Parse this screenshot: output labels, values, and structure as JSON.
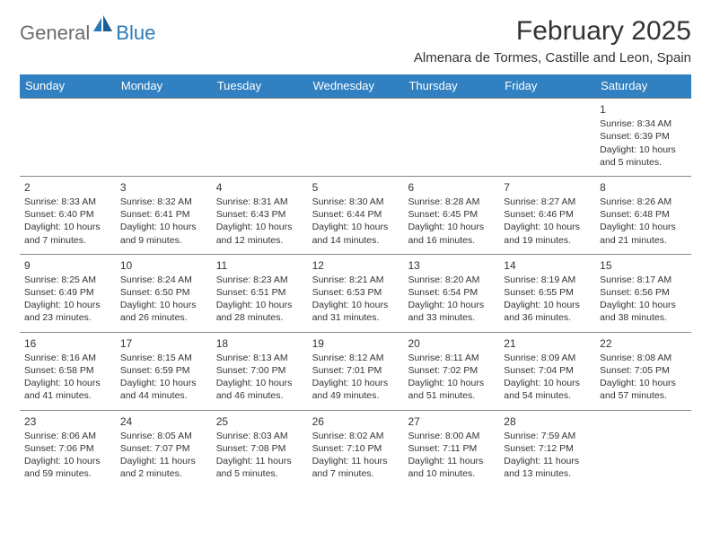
{
  "brand": {
    "text1": "General",
    "text2": "Blue"
  },
  "title": "February 2025",
  "location": "Almenara de Tormes, Castille and Leon, Spain",
  "colors": {
    "header_bg": "#3080c2",
    "header_text": "#ffffff",
    "text": "#333333",
    "border": "#888888",
    "logo_gray": "#6b6b6b",
    "logo_blue": "#2a7ab9",
    "background": "#ffffff"
  },
  "day_names": [
    "Sunday",
    "Monday",
    "Tuesday",
    "Wednesday",
    "Thursday",
    "Friday",
    "Saturday"
  ],
  "weeks": [
    [
      null,
      null,
      null,
      null,
      null,
      null,
      {
        "n": "1",
        "sunrise": "Sunrise: 8:34 AM",
        "sunset": "Sunset: 6:39 PM",
        "day1": "Daylight: 10 hours",
        "day2": "and 5 minutes."
      }
    ],
    [
      {
        "n": "2",
        "sunrise": "Sunrise: 8:33 AM",
        "sunset": "Sunset: 6:40 PM",
        "day1": "Daylight: 10 hours",
        "day2": "and 7 minutes."
      },
      {
        "n": "3",
        "sunrise": "Sunrise: 8:32 AM",
        "sunset": "Sunset: 6:41 PM",
        "day1": "Daylight: 10 hours",
        "day2": "and 9 minutes."
      },
      {
        "n": "4",
        "sunrise": "Sunrise: 8:31 AM",
        "sunset": "Sunset: 6:43 PM",
        "day1": "Daylight: 10 hours",
        "day2": "and 12 minutes."
      },
      {
        "n": "5",
        "sunrise": "Sunrise: 8:30 AM",
        "sunset": "Sunset: 6:44 PM",
        "day1": "Daylight: 10 hours",
        "day2": "and 14 minutes."
      },
      {
        "n": "6",
        "sunrise": "Sunrise: 8:28 AM",
        "sunset": "Sunset: 6:45 PM",
        "day1": "Daylight: 10 hours",
        "day2": "and 16 minutes."
      },
      {
        "n": "7",
        "sunrise": "Sunrise: 8:27 AM",
        "sunset": "Sunset: 6:46 PM",
        "day1": "Daylight: 10 hours",
        "day2": "and 19 minutes."
      },
      {
        "n": "8",
        "sunrise": "Sunrise: 8:26 AM",
        "sunset": "Sunset: 6:48 PM",
        "day1": "Daylight: 10 hours",
        "day2": "and 21 minutes."
      }
    ],
    [
      {
        "n": "9",
        "sunrise": "Sunrise: 8:25 AM",
        "sunset": "Sunset: 6:49 PM",
        "day1": "Daylight: 10 hours",
        "day2": "and 23 minutes."
      },
      {
        "n": "10",
        "sunrise": "Sunrise: 8:24 AM",
        "sunset": "Sunset: 6:50 PM",
        "day1": "Daylight: 10 hours",
        "day2": "and 26 minutes."
      },
      {
        "n": "11",
        "sunrise": "Sunrise: 8:23 AM",
        "sunset": "Sunset: 6:51 PM",
        "day1": "Daylight: 10 hours",
        "day2": "and 28 minutes."
      },
      {
        "n": "12",
        "sunrise": "Sunrise: 8:21 AM",
        "sunset": "Sunset: 6:53 PM",
        "day1": "Daylight: 10 hours",
        "day2": "and 31 minutes."
      },
      {
        "n": "13",
        "sunrise": "Sunrise: 8:20 AM",
        "sunset": "Sunset: 6:54 PM",
        "day1": "Daylight: 10 hours",
        "day2": "and 33 minutes."
      },
      {
        "n": "14",
        "sunrise": "Sunrise: 8:19 AM",
        "sunset": "Sunset: 6:55 PM",
        "day1": "Daylight: 10 hours",
        "day2": "and 36 minutes."
      },
      {
        "n": "15",
        "sunrise": "Sunrise: 8:17 AM",
        "sunset": "Sunset: 6:56 PM",
        "day1": "Daylight: 10 hours",
        "day2": "and 38 minutes."
      }
    ],
    [
      {
        "n": "16",
        "sunrise": "Sunrise: 8:16 AM",
        "sunset": "Sunset: 6:58 PM",
        "day1": "Daylight: 10 hours",
        "day2": "and 41 minutes."
      },
      {
        "n": "17",
        "sunrise": "Sunrise: 8:15 AM",
        "sunset": "Sunset: 6:59 PM",
        "day1": "Daylight: 10 hours",
        "day2": "and 44 minutes."
      },
      {
        "n": "18",
        "sunrise": "Sunrise: 8:13 AM",
        "sunset": "Sunset: 7:00 PM",
        "day1": "Daylight: 10 hours",
        "day2": "and 46 minutes."
      },
      {
        "n": "19",
        "sunrise": "Sunrise: 8:12 AM",
        "sunset": "Sunset: 7:01 PM",
        "day1": "Daylight: 10 hours",
        "day2": "and 49 minutes."
      },
      {
        "n": "20",
        "sunrise": "Sunrise: 8:11 AM",
        "sunset": "Sunset: 7:02 PM",
        "day1": "Daylight: 10 hours",
        "day2": "and 51 minutes."
      },
      {
        "n": "21",
        "sunrise": "Sunrise: 8:09 AM",
        "sunset": "Sunset: 7:04 PM",
        "day1": "Daylight: 10 hours",
        "day2": "and 54 minutes."
      },
      {
        "n": "22",
        "sunrise": "Sunrise: 8:08 AM",
        "sunset": "Sunset: 7:05 PM",
        "day1": "Daylight: 10 hours",
        "day2": "and 57 minutes."
      }
    ],
    [
      {
        "n": "23",
        "sunrise": "Sunrise: 8:06 AM",
        "sunset": "Sunset: 7:06 PM",
        "day1": "Daylight: 10 hours",
        "day2": "and 59 minutes."
      },
      {
        "n": "24",
        "sunrise": "Sunrise: 8:05 AM",
        "sunset": "Sunset: 7:07 PM",
        "day1": "Daylight: 11 hours",
        "day2": "and 2 minutes."
      },
      {
        "n": "25",
        "sunrise": "Sunrise: 8:03 AM",
        "sunset": "Sunset: 7:08 PM",
        "day1": "Daylight: 11 hours",
        "day2": "and 5 minutes."
      },
      {
        "n": "26",
        "sunrise": "Sunrise: 8:02 AM",
        "sunset": "Sunset: 7:10 PM",
        "day1": "Daylight: 11 hours",
        "day2": "and 7 minutes."
      },
      {
        "n": "27",
        "sunrise": "Sunrise: 8:00 AM",
        "sunset": "Sunset: 7:11 PM",
        "day1": "Daylight: 11 hours",
        "day2": "and 10 minutes."
      },
      {
        "n": "28",
        "sunrise": "Sunrise: 7:59 AM",
        "sunset": "Sunset: 7:12 PM",
        "day1": "Daylight: 11 hours",
        "day2": "and 13 minutes."
      },
      null
    ]
  ]
}
